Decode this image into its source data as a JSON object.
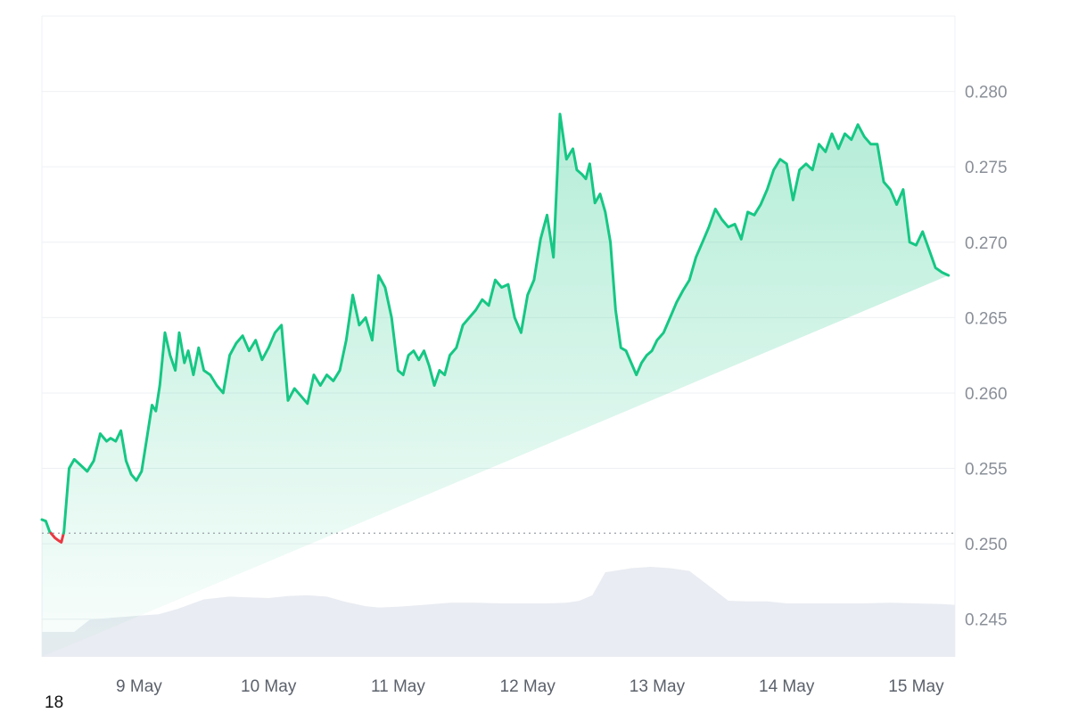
{
  "chart_data": {
    "type": "area",
    "title": "",
    "xlabel": "",
    "ylabel": "",
    "ylim": [
      0.2425,
      0.285
    ],
    "y_ticks": [
      "0.245",
      "0.250",
      "0.255",
      "0.260",
      "0.265",
      "0.270",
      "0.275",
      "0.280"
    ],
    "x_ticks": [
      "9 May",
      "10 May",
      "11 May",
      "12 May",
      "13 May",
      "14 May",
      "15 May"
    ],
    "x_range_days": [
      8.25,
      15.3
    ],
    "baseline": 0.2507,
    "grid": true,
    "legend": "none",
    "colors": {
      "up": "#16c784",
      "down": "#ea3943",
      "volume": "#e9ecf2",
      "grid": "#eef0f3"
    },
    "series": [
      {
        "values_x_days": [
          8.25,
          8.28,
          8.31,
          8.35,
          8.38,
          8.4,
          8.42,
          8.46,
          8.5,
          8.55,
          8.6,
          8.65,
          8.7,
          8.75,
          8.78,
          8.82,
          8.86,
          8.9,
          8.94,
          8.98,
          9.02,
          9.06,
          9.1,
          9.13,
          9.16,
          9.2,
          9.24,
          9.28,
          9.31,
          9.35,
          9.38,
          9.42,
          9.46,
          9.5,
          9.55,
          9.6,
          9.65,
          9.7,
          9.75,
          9.8,
          9.85,
          9.9,
          9.95,
          10.0,
          10.05,
          10.1,
          10.15,
          10.2,
          10.25,
          10.3,
          10.35,
          10.4,
          10.45,
          10.5,
          10.55,
          10.6,
          10.65,
          10.7,
          10.75,
          10.8,
          10.85,
          10.9,
          10.95,
          11.0,
          11.04,
          11.08,
          11.12,
          11.16,
          11.2,
          11.24,
          11.28,
          11.32,
          11.36,
          11.4,
          11.45,
          11.5,
          11.55,
          11.6,
          11.65,
          11.7,
          11.75,
          11.8,
          11.85,
          11.9,
          11.95,
          12.0,
          12.05,
          12.1,
          12.15,
          12.2,
          12.25,
          12.3,
          12.35,
          12.38,
          12.42,
          12.45,
          12.48,
          12.52,
          12.56,
          12.6,
          12.64,
          12.68,
          12.72,
          12.76,
          12.8,
          12.84,
          12.88,
          12.92,
          12.96,
          13.0,
          13.05,
          13.1,
          13.15,
          13.2,
          13.25,
          13.3,
          13.35,
          13.4,
          13.45,
          13.5,
          13.55,
          13.6,
          13.65,
          13.7,
          13.75,
          13.8,
          13.85,
          13.9,
          13.95,
          14.0,
          14.05,
          14.1,
          14.15,
          14.2,
          14.25,
          14.3,
          14.35,
          14.4,
          14.45,
          14.5,
          14.55,
          14.6,
          14.65,
          14.7,
          14.75,
          14.8,
          14.85,
          14.9,
          14.95,
          15.0,
          15.05,
          15.1,
          15.15,
          15.2,
          15.25,
          15.28,
          15.3
        ],
        "values": [
          0.2516,
          0.2515,
          0.2508,
          0.2504,
          0.2502,
          0.2501,
          0.2508,
          0.255,
          0.2556,
          0.2552,
          0.2548,
          0.2555,
          0.2573,
          0.2568,
          0.257,
          0.2568,
          0.2575,
          0.2555,
          0.2546,
          0.2542,
          0.2548,
          0.257,
          0.2592,
          0.2588,
          0.2605,
          0.264,
          0.2625,
          0.2615,
          0.264,
          0.262,
          0.2628,
          0.2612,
          0.263,
          0.2615,
          0.2612,
          0.2605,
          0.26,
          0.2625,
          0.2633,
          0.2638,
          0.2628,
          0.2635,
          0.2622,
          0.263,
          0.264,
          0.2645,
          0.2595,
          0.2603,
          0.2598,
          0.2593,
          0.2612,
          0.2605,
          0.2612,
          0.2608,
          0.2615,
          0.2635,
          0.2665,
          0.2645,
          0.265,
          0.2635,
          0.2678,
          0.267,
          0.265,
          0.2615,
          0.2612,
          0.2625,
          0.2628,
          0.2622,
          0.2628,
          0.2618,
          0.2605,
          0.2615,
          0.2612,
          0.2625,
          0.263,
          0.2645,
          0.265,
          0.2655,
          0.2662,
          0.2658,
          0.2675,
          0.267,
          0.2672,
          0.265,
          0.264,
          0.2665,
          0.2675,
          0.2702,
          0.2718,
          0.269,
          0.2785,
          0.2755,
          0.2762,
          0.2748,
          0.2745,
          0.2742,
          0.2752,
          0.2726,
          0.2732,
          0.272,
          0.27,
          0.2655,
          0.263,
          0.2628,
          0.262,
          0.2612,
          0.262,
          0.2625,
          0.2628,
          0.2635,
          0.264,
          0.265,
          0.266,
          0.2668,
          0.2675,
          0.269,
          0.27,
          0.271,
          0.2722,
          0.2715,
          0.271,
          0.2712,
          0.2702,
          0.272,
          0.2718,
          0.2725,
          0.2735,
          0.2748,
          0.2755,
          0.2752,
          0.2728,
          0.2748,
          0.2752,
          0.2748,
          0.2765,
          0.276,
          0.2772,
          0.2762,
          0.2772,
          0.2768,
          0.2778,
          0.277,
          0.2765,
          0.2765,
          0.274,
          0.2735,
          0.2725,
          0.2735,
          0.27,
          0.2698,
          0.2707,
          0.2695,
          0.2683,
          0.268,
          0.2678
        ]
      }
    ],
    "volume": {
      "values_x_days": [
        8.25,
        8.5,
        8.62,
        8.8,
        9.0,
        9.15,
        9.3,
        9.5,
        9.7,
        9.85,
        10.0,
        10.15,
        10.3,
        10.45,
        10.6,
        10.75,
        10.85,
        11.0,
        11.2,
        11.4,
        11.6,
        11.8,
        12.0,
        12.15,
        12.3,
        12.4,
        12.5,
        12.6,
        12.8,
        12.95,
        13.1,
        13.25,
        13.4,
        13.55,
        13.7,
        13.85,
        14.0,
        14.2,
        14.4,
        14.6,
        14.8,
        15.0,
        15.2,
        15.3
      ],
      "values": [
        0.04,
        0.04,
        0.22,
        0.25,
        0.28,
        0.3,
        0.38,
        0.52,
        0.56,
        0.55,
        0.54,
        0.57,
        0.58,
        0.56,
        0.48,
        0.42,
        0.4,
        0.41,
        0.44,
        0.47,
        0.47,
        0.46,
        0.46,
        0.46,
        0.47,
        0.5,
        0.58,
        0.92,
        0.98,
        1.0,
        0.98,
        0.94,
        0.72,
        0.5,
        0.49,
        0.49,
        0.46,
        0.46,
        0.46,
        0.46,
        0.47,
        0.46,
        0.45,
        0.44
      ]
    }
  },
  "corner_label": "18"
}
